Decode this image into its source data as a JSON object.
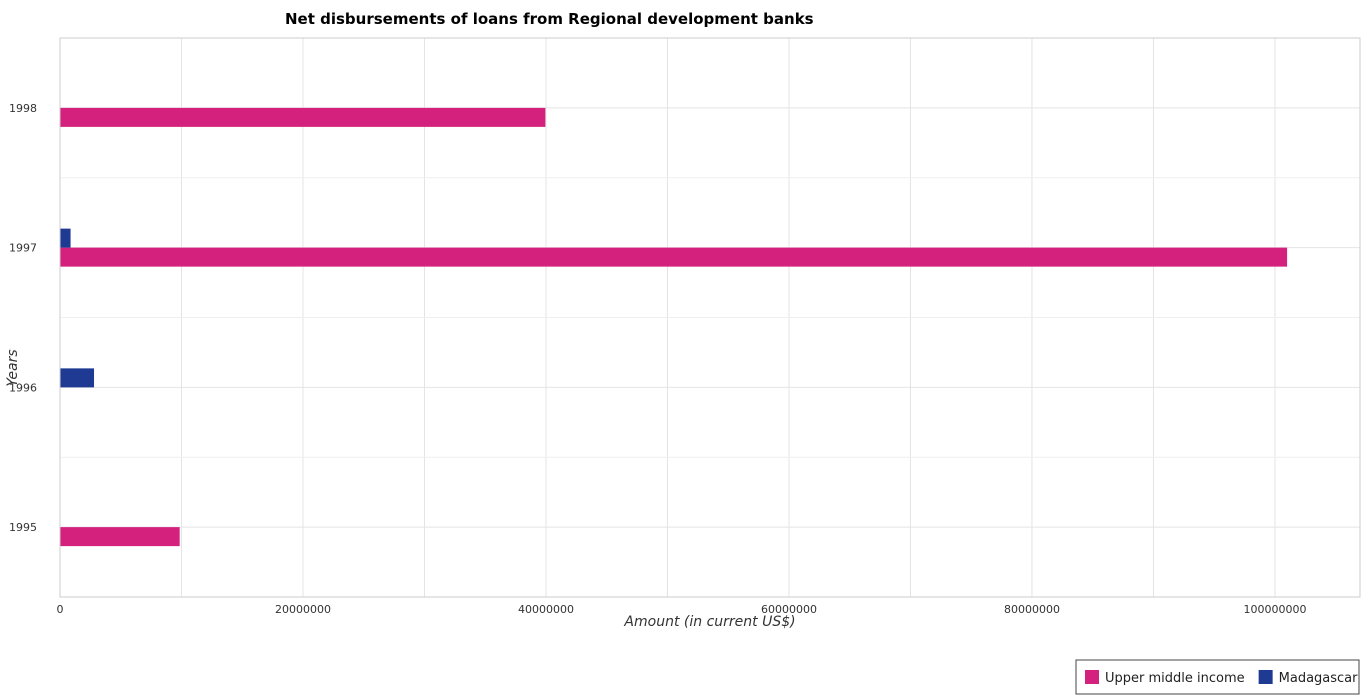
{
  "chart_data": {
    "type": "bar",
    "orientation": "horizontal",
    "title": "Net disbursements of loans from Regional development banks",
    "xlabel": "Amount (in current US$)",
    "ylabel": "Years",
    "categories": [
      "1995",
      "1996",
      "1997",
      "1998"
    ],
    "series": [
      {
        "name": "Upper middle income",
        "color": "#d4217d",
        "values": [
          9850000,
          0,
          101000000,
          39950000
        ]
      },
      {
        "name": "Madagascar",
        "color": "#1f3a93",
        "values": [
          0,
          2800000,
          870000,
          0
        ]
      }
    ],
    "xlim": [
      0,
      107000000
    ],
    "xticks": [
      0,
      20000000,
      40000000,
      60000000,
      80000000,
      100000000
    ],
    "xtick_labels": [
      "0",
      "20000000",
      "40000000",
      "60000000",
      "80000000",
      "100000000"
    ],
    "grid": true,
    "legend_position": "bottom-right"
  }
}
